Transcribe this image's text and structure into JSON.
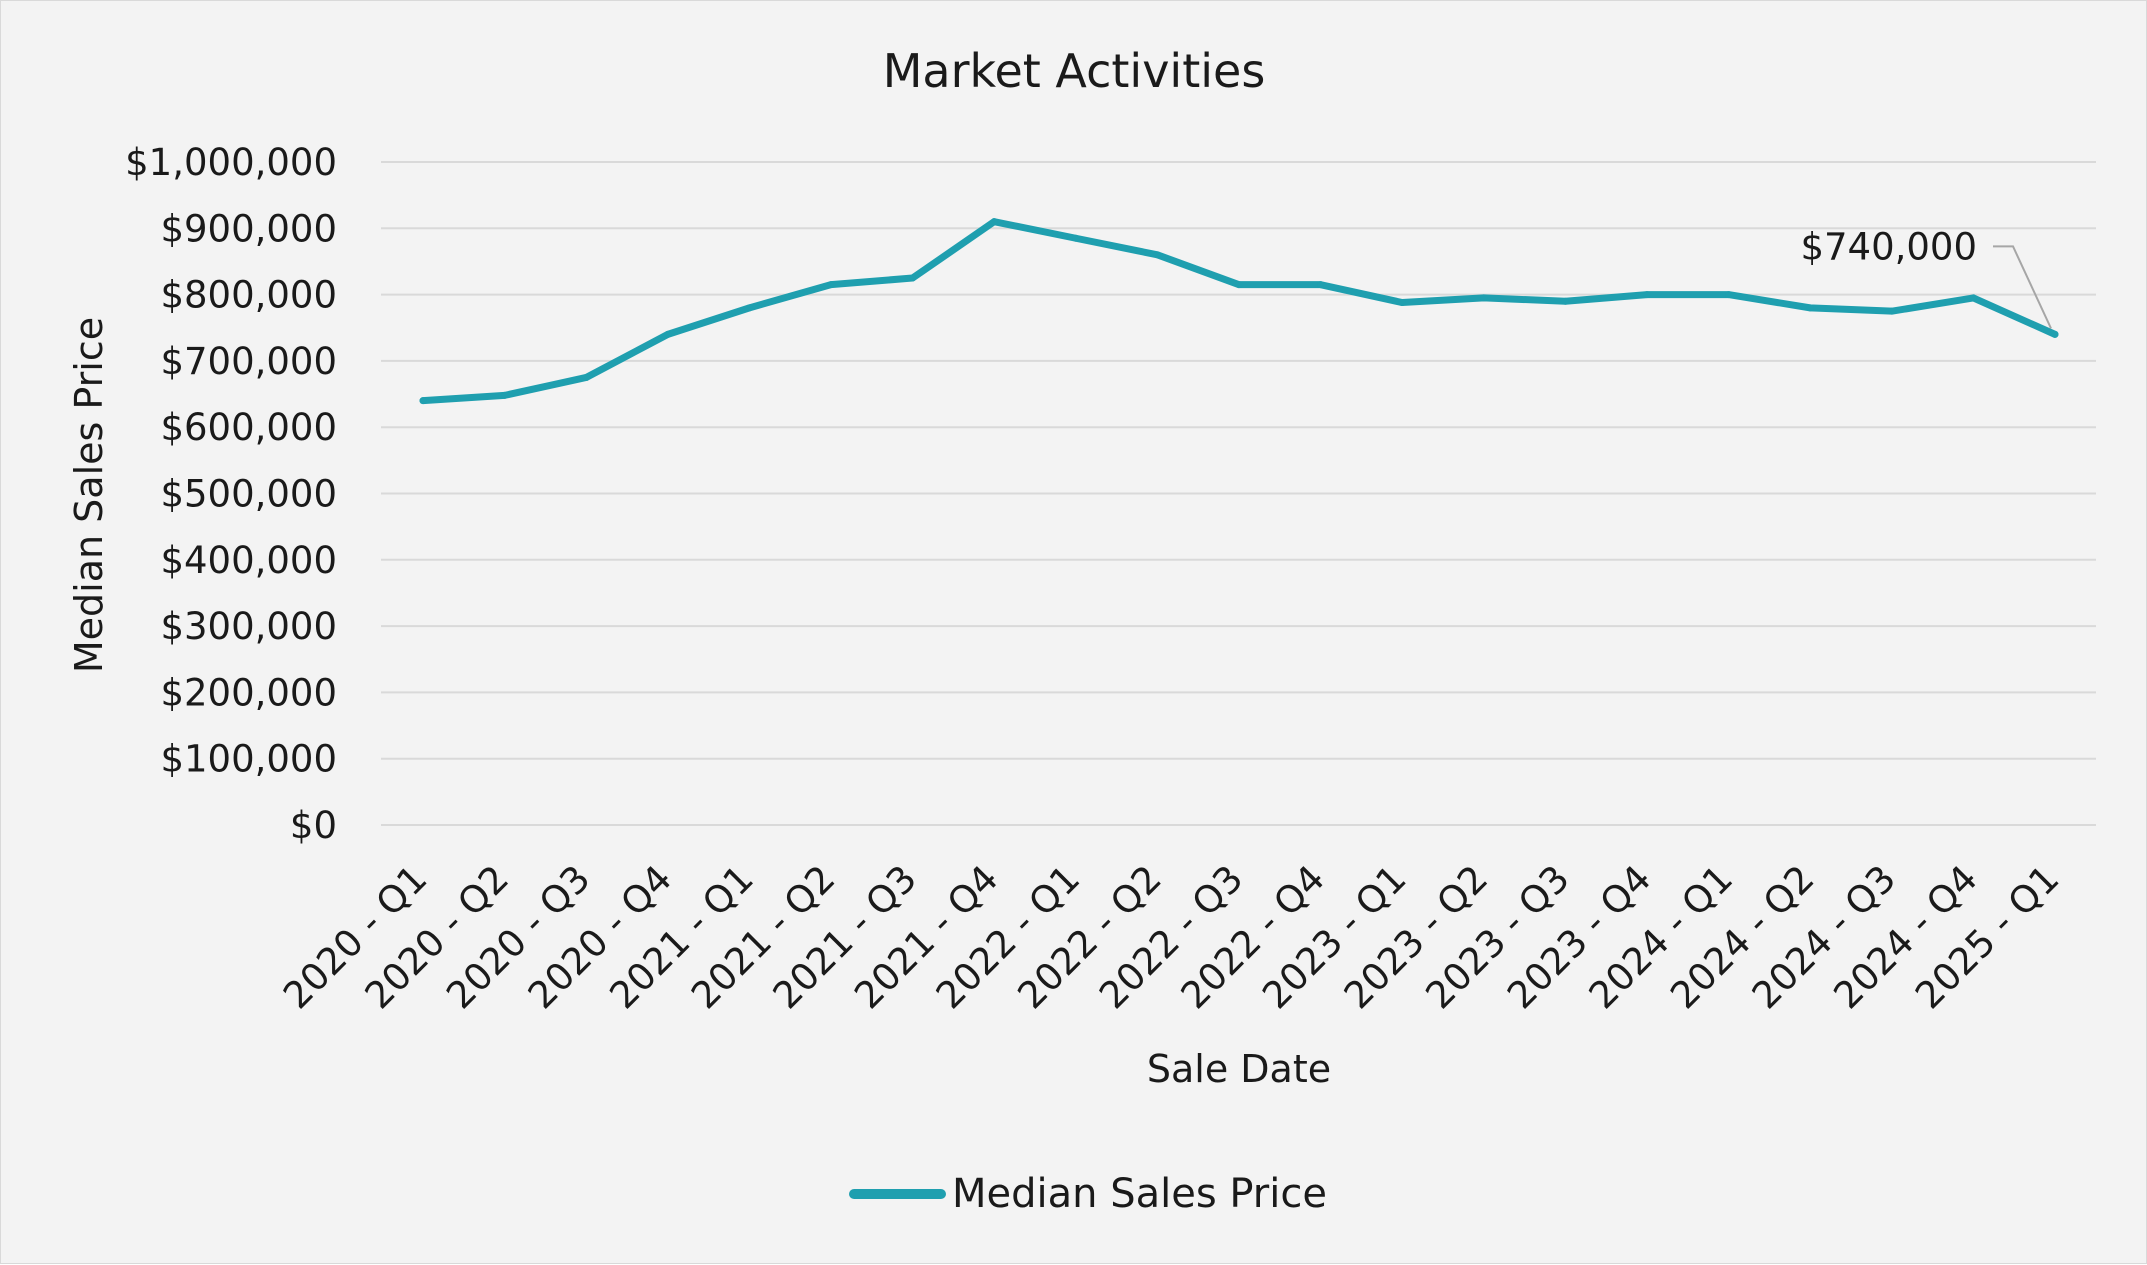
{
  "chart_data": {
    "type": "line",
    "title": "Market Activities",
    "xlabel": "Sale Date",
    "ylabel": "Median Sales Price",
    "ylim": [
      0,
      1000000
    ],
    "y_ticks": [
      {
        "value": 0,
        "label": "$0"
      },
      {
        "value": 100000,
        "label": "$100,000"
      },
      {
        "value": 200000,
        "label": "$200,000"
      },
      {
        "value": 300000,
        "label": "$300,000"
      },
      {
        "value": 400000,
        "label": "$400,000"
      },
      {
        "value": 500000,
        "label": "$500,000"
      },
      {
        "value": 600000,
        "label": "$600,000"
      },
      {
        "value": 700000,
        "label": "$700,000"
      },
      {
        "value": 800000,
        "label": "$800,000"
      },
      {
        "value": 900000,
        "label": "$900,000"
      },
      {
        "value": 1000000,
        "label": "$1,000,000"
      }
    ],
    "grid": true,
    "legend_position": "bottom",
    "categories": [
      "2020 - Q1",
      "2020 - Q2",
      "2020 - Q3",
      "2020 - Q4",
      "2021 - Q1",
      "2021 - Q2",
      "2021 - Q3",
      "2021 - Q4",
      "2022 - Q1",
      "2022 - Q2",
      "2022 - Q3",
      "2022 - Q4",
      "2023 - Q1",
      "2023 - Q2",
      "2023 - Q3",
      "2023 - Q4",
      "2024 - Q1",
      "2024 - Q2",
      "2024 - Q3",
      "2024 - Q4",
      "2025 - Q1"
    ],
    "series": [
      {
        "name": "Median Sales Price",
        "color": "#1f9faf",
        "values": [
          640000,
          648000,
          675000,
          740000,
          780000,
          815000,
          825000,
          910000,
          885000,
          860000,
          815000,
          815000,
          788000,
          795000,
          790000,
          800000,
          800000,
          780000,
          775000,
          795000,
          740000
        ]
      }
    ],
    "annotations": [
      {
        "category_index": 20,
        "value": 740000,
        "label": "$740,000"
      }
    ]
  }
}
